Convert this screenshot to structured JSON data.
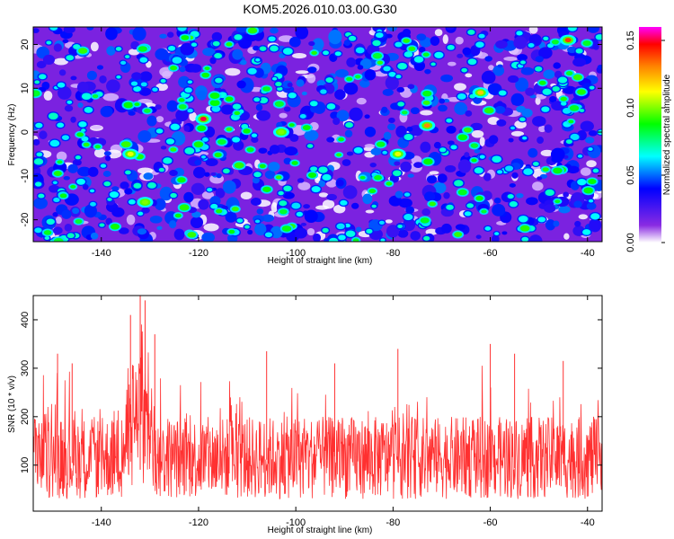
{
  "page_title": "KOM5.2026.010.03.00.G30",
  "chart_data": [
    {
      "type": "heatmap",
      "title": "KOM5.2026.010.03.00.G30",
      "xlabel": "Height of straight line (km)",
      "ylabel": "Frequency (Hz)",
      "xlim": [
        -154,
        -37
      ],
      "ylim": [
        -25,
        24
      ],
      "xticks": [
        -140,
        -120,
        -100,
        -80,
        -60,
        -40
      ],
      "yticks": [
        -20,
        -10,
        0,
        10,
        20
      ],
      "colorbar": {
        "label": "Normalized spectral amplitude",
        "range": [
          0.0,
          0.16
        ],
        "ticks": [
          0.0,
          0.05,
          0.1,
          0.15
        ],
        "tick_labels": [
          "0.00",
          "0.05",
          "0.10",
          "0.15"
        ],
        "colors": [
          "#ffffff",
          "#8a2be2",
          "#0000ff",
          "#00ffff",
          "#00ff00",
          "#ffff00",
          "#ff8000",
          "#ff0000",
          "#ff00ff"
        ]
      },
      "description": "dense speckle of blobs, mostly purple/blue (values ~0.01-0.05)",
      "hotspots": [
        {
          "x": -119,
          "y": 3,
          "value": 0.15
        },
        {
          "x": -44,
          "y": 21,
          "value": 0.14
        },
        {
          "x": -73,
          "y": 1.5,
          "value": 0.13
        },
        {
          "x": -62,
          "y": 9,
          "value": 0.12
        },
        {
          "x": -134,
          "y": -5,
          "value": 0.11
        },
        {
          "x": -79,
          "y": -5,
          "value": 0.11
        },
        {
          "x": -131,
          "y": -16,
          "value": 0.1
        },
        {
          "x": -103,
          "y": 0,
          "value": 0.1
        }
      ]
    },
    {
      "type": "line",
      "xlabel": "Height of straight line (km)",
      "ylabel": "SNR (10 * v/v)",
      "xlim": [
        -154,
        -37
      ],
      "ylim": [
        5,
        450
      ],
      "xticks": [
        -140,
        -120,
        -100,
        -80,
        -60,
        -40
      ],
      "yticks": [
        100,
        200,
        300,
        400
      ],
      "color": "#ff3030",
      "description": "noisy signal fluctuating roughly 30-300 with a cluster of spikes near -132 km reaching ~450",
      "baseline_mean": 120,
      "peaks": [
        {
          "x": -132,
          "y": 450
        },
        {
          "x": -131,
          "y": 440
        },
        {
          "x": -134,
          "y": 410
        },
        {
          "x": -129,
          "y": 370
        },
        {
          "x": -60,
          "y": 350
        },
        {
          "x": -79,
          "y": 340
        },
        {
          "x": -106,
          "y": 335
        },
        {
          "x": -149,
          "y": 330
        },
        {
          "x": -55,
          "y": 330
        },
        {
          "x": -45,
          "y": 315
        },
        {
          "x": -146,
          "y": 310
        },
        {
          "x": -92,
          "y": 310
        }
      ]
    }
  ]
}
